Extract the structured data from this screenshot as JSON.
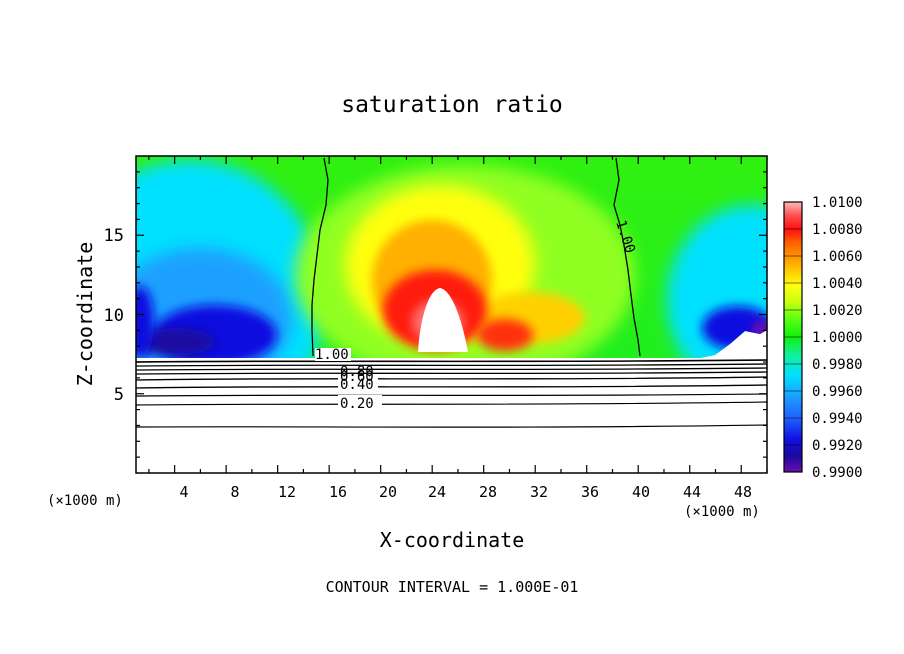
{
  "chart_data": {
    "type": "heatmap",
    "title": "saturation ratio",
    "xlabel": "X-coordinate",
    "ylabel": "Z-coordinate",
    "x_unit_label": "(×1000 m)",
    "footer": "CONTOUR INTERVAL = 1.000E-01",
    "xlim": [
      1,
      50
    ],
    "ylim": [
      0,
      20
    ],
    "x_ticks": [
      "4",
      "8",
      "12",
      "16",
      "20",
      "24",
      "28",
      "32",
      "36",
      "40",
      "44",
      "48"
    ],
    "y_ticks": [
      "5",
      "10",
      "15"
    ],
    "colorbar": {
      "levels": [
        "0.9900",
        "0.9920",
        "0.9940",
        "0.9960",
        "0.9980",
        "1.0000",
        "1.0020",
        "1.0040",
        "1.0060",
        "1.0080",
        "1.0100"
      ],
      "colors": [
        "#6a0dad",
        "#1a0aa0",
        "#1010e0",
        "#2060ff",
        "#1aa0ff",
        "#00e0ff",
        "#10f0a0",
        "#10f010",
        "#60ff10",
        "#c8ff10",
        "#ffff10",
        "#ffd000",
        "#ff9c00",
        "#ff6000",
        "#ff1010",
        "#ff5050",
        "#ff8a8a",
        "#ffb8b8"
      ]
    },
    "contour_labels": [
      {
        "text": "1.00",
        "x": 15.5,
        "y": 7.4
      },
      {
        "text": "1.00",
        "x": 38.9,
        "y": 14.8
      },
      {
        "text": "0.80",
        "x": 18.0,
        "y": 6.9
      },
      {
        "text": "0.60",
        "x": 18.0,
        "y": 6.4
      },
      {
        "text": "0.40",
        "x": 18.0,
        "y": 5.7
      },
      {
        "text": "0.20",
        "x": 18.0,
        "y": 4.4
      }
    ]
  }
}
